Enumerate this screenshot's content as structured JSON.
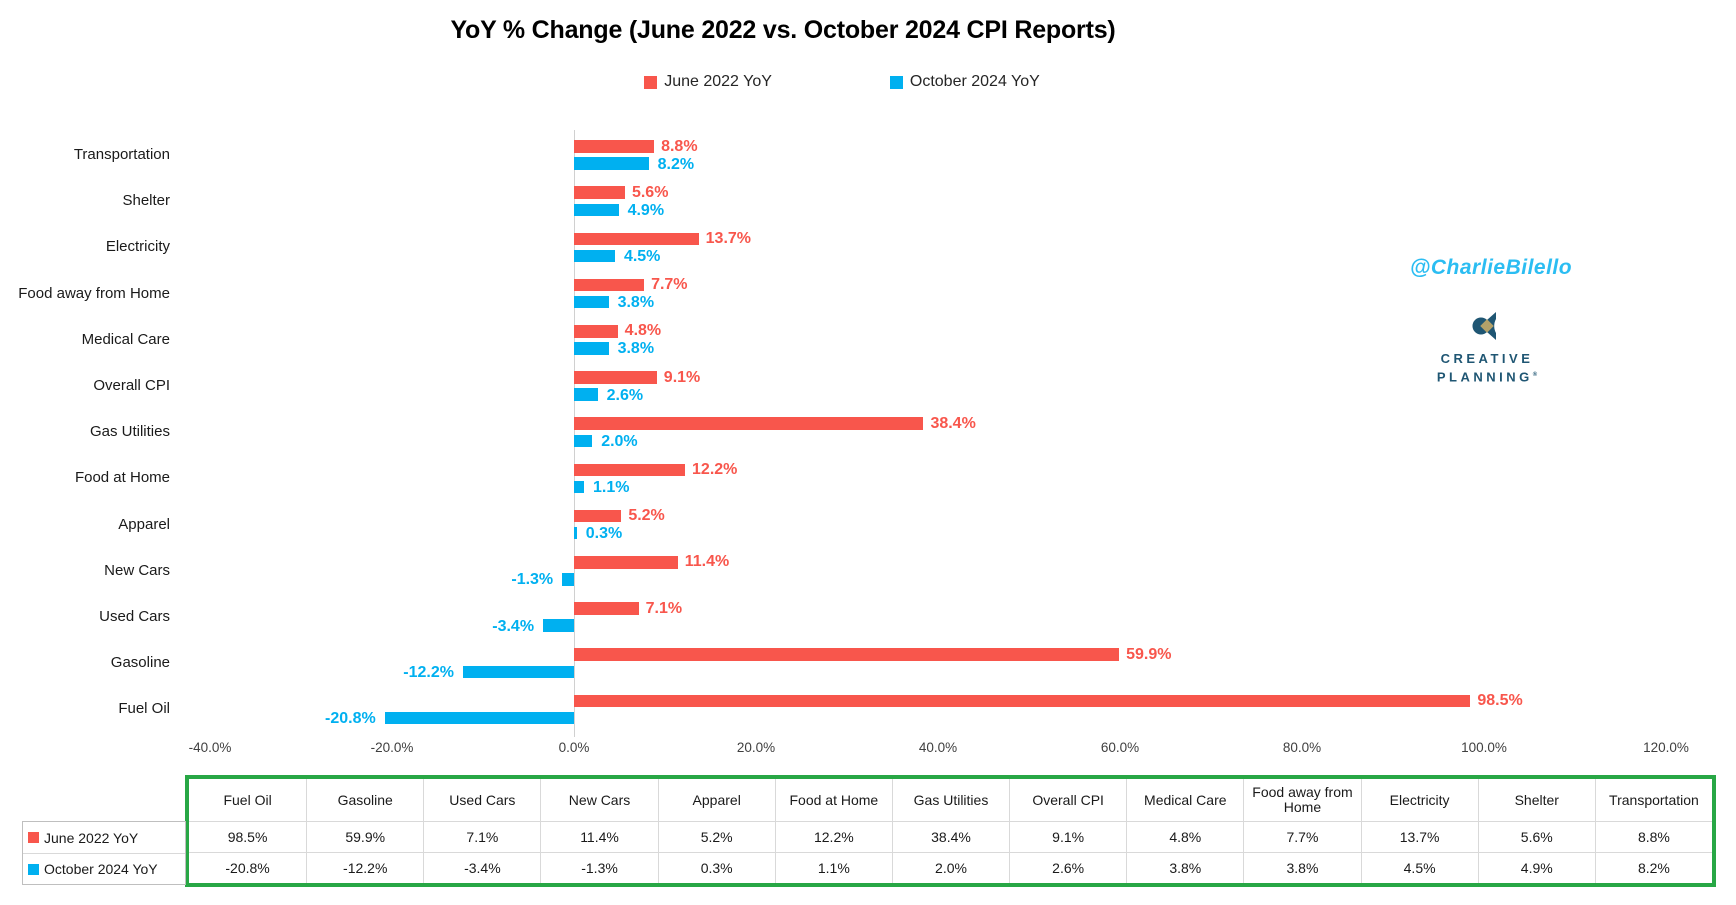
{
  "title": "YoY % Change (June 2022 vs. October 2024 CPI Reports)",
  "legend": [
    {
      "label": "June 2022 YoY",
      "color": "#f8564c"
    },
    {
      "label": "October 2024 YoY",
      "color": "#00b0f0"
    }
  ],
  "watermark": {
    "handle": "@CharlieBilello",
    "handle_color": "#2bbdf2",
    "logo_line1": "CREATIVE",
    "logo_line2": "PLANNING",
    "logo_mark": "®",
    "logo_navy": "#1f5673",
    "logo_gold": "#b3a169"
  },
  "chart_data": {
    "type": "bar",
    "orientation": "horizontal",
    "title": "YoY % Change (June 2022 vs. October 2024 CPI Reports)",
    "categories": [
      "Transportation",
      "Shelter",
      "Electricity",
      "Food away from Home",
      "Medical Care",
      "Overall CPI",
      "Gas Utilities",
      "Food at Home",
      "Apparel",
      "New Cars",
      "Used Cars",
      "Gasoline",
      "Fuel Oil"
    ],
    "series": [
      {
        "name": "June 2022 YoY",
        "color": "#f8564c",
        "values": [
          8.8,
          5.6,
          13.7,
          7.7,
          4.8,
          9.1,
          38.4,
          12.2,
          5.2,
          11.4,
          7.1,
          59.9,
          98.5
        ]
      },
      {
        "name": "October 2024 YoY",
        "color": "#00b0f0",
        "values": [
          8.2,
          4.9,
          4.5,
          3.8,
          3.8,
          2.6,
          2.0,
          1.1,
          0.3,
          -1.3,
          -3.4,
          -12.2,
          -20.8
        ]
      }
    ],
    "x_axis": {
      "range": [
        -40,
        120
      ],
      "ticks": [
        -40,
        -20,
        0,
        20,
        40,
        60,
        80,
        100,
        120
      ],
      "tick_suffix": "%"
    },
    "grid": false,
    "legend_position": "top",
    "value_labels": true
  },
  "table": {
    "border_color": "#28a745",
    "columns": [
      "Fuel Oil",
      "Gasoline",
      "Used Cars",
      "New Cars",
      "Apparel",
      "Food at Home",
      "Gas Utilities",
      "Overall CPI",
      "Medical Care",
      "Food away from Home",
      "Electricity",
      "Shelter",
      "Transportation"
    ],
    "rows": [
      {
        "label": "June 2022 YoY",
        "swatch": "#f8564c",
        "values": [
          "98.5%",
          "59.9%",
          "7.1%",
          "11.4%",
          "5.2%",
          "12.2%",
          "38.4%",
          "9.1%",
          "4.8%",
          "7.7%",
          "13.7%",
          "5.6%",
          "8.8%"
        ]
      },
      {
        "label": "October 2024 YoY",
        "swatch": "#00b0f0",
        "values": [
          "-20.8%",
          "-12.2%",
          "-3.4%",
          "-1.3%",
          "0.3%",
          "1.1%",
          "2.0%",
          "2.6%",
          "3.8%",
          "3.8%",
          "4.5%",
          "4.9%",
          "8.2%"
        ]
      }
    ]
  }
}
